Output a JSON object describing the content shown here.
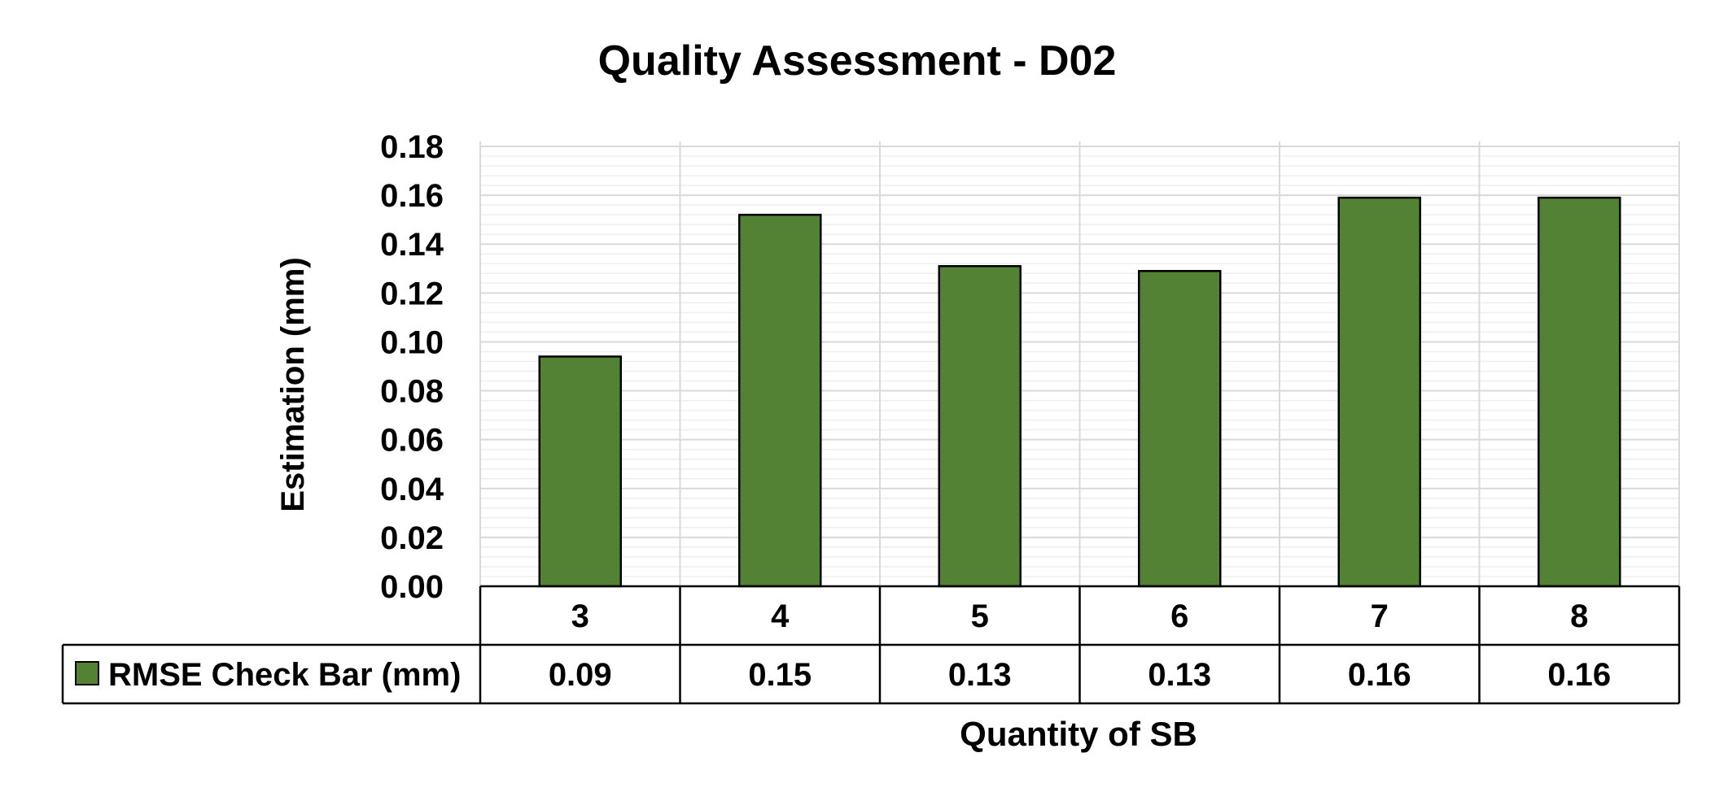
{
  "chart_data": {
    "type": "bar",
    "title": "Quality Assessment - D02",
    "xlabel": "Quantity of SB",
    "ylabel": "Estimation (mm)",
    "categories": [
      "3",
      "4",
      "5",
      "6",
      "7",
      "8"
    ],
    "series": [
      {
        "name": "RMSE Check Bar (mm)",
        "values": [
          0.094,
          0.152,
          0.131,
          0.129,
          0.159,
          0.159
        ],
        "labels": [
          "0.09",
          "0.15",
          "0.13",
          "0.13",
          "0.16",
          "0.16"
        ],
        "color": "#548235"
      }
    ],
    "yticks": [
      "0.00",
      "0.02",
      "0.04",
      "0.06",
      "0.08",
      "0.10",
      "0.12",
      "0.14",
      "0.16",
      "0.18"
    ],
    "ylim": [
      0,
      0.18
    ],
    "grid": true,
    "data_table": true
  }
}
